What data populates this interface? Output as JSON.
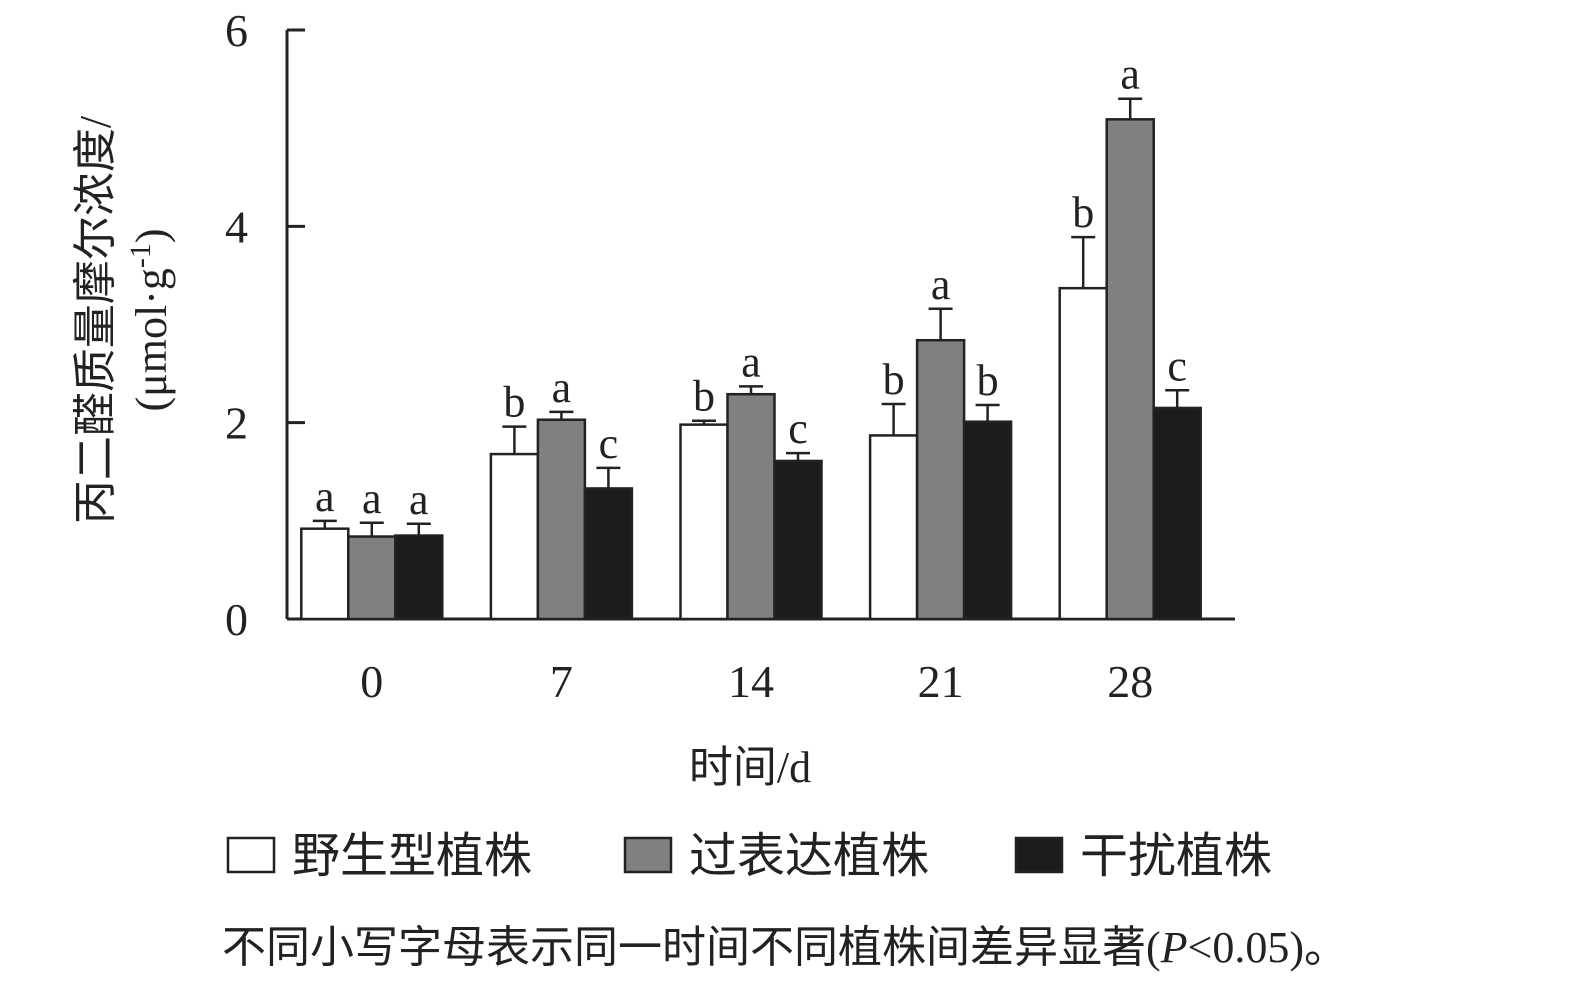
{
  "chart_data": {
    "type": "bar",
    "categories": [
      "0",
      "7",
      "14",
      "21",
      "28"
    ],
    "xlabel": "时间/d",
    "ylabel_line1": "丙二醛质量摩尔浓度/",
    "ylabel_line2": "(μmol·g",
    "ylabel_sup": "-1",
    "ylabel_close": ")",
    "ylim": [
      0,
      6
    ],
    "yticks": [
      "0",
      "2",
      "4",
      "6"
    ],
    "series": [
      {
        "name": "野生型植株",
        "color": "#ffffff",
        "values": [
          0.92,
          1.68,
          1.98,
          1.87,
          3.37
        ],
        "errors": [
          0.08,
          0.28,
          0.04,
          0.32,
          0.52
        ],
        "sig": [
          "a",
          "b",
          "b",
          "b",
          "b"
        ]
      },
      {
        "name": "过表达植株",
        "color": "#808080",
        "values": [
          0.84,
          2.03,
          2.29,
          2.84,
          5.09
        ],
        "errors": [
          0.14,
          0.08,
          0.08,
          0.32,
          0.21
        ],
        "sig": [
          "a",
          "a",
          "a",
          "a",
          "a"
        ]
      },
      {
        "name": "干扰植株",
        "color": "#1c1c1c",
        "values": [
          0.85,
          1.33,
          1.61,
          2.01,
          2.15
        ],
        "errors": [
          0.12,
          0.21,
          0.08,
          0.17,
          0.18
        ],
        "sig": [
          "a",
          "c",
          "c",
          "b",
          "c"
        ]
      }
    ],
    "legend_position": "bottom",
    "grid": false,
    "note": "不同小写字母表示同一时间不同植株间差异显著(",
    "note_italic": "P",
    "note_tail": "<0.05)。"
  }
}
